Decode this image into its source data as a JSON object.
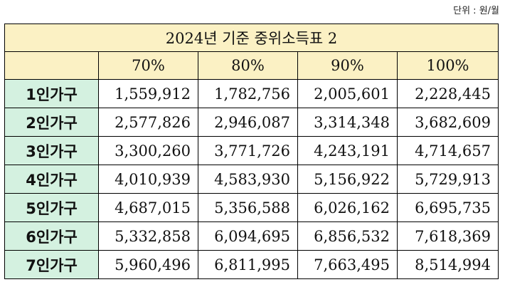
{
  "unit_label": "단위 : 원/월",
  "table": {
    "title": "2024년 기준 중위소득표 2",
    "columns": [
      "70%",
      "80%",
      "90%",
      "100%"
    ],
    "rows": [
      {
        "label": "1인가구",
        "values": [
          "1,559,912",
          "1,782,756",
          "2,005,601",
          "2,228,445"
        ]
      },
      {
        "label": "2인가구",
        "values": [
          "2,577,826",
          "2,946,087",
          "3,314,348",
          "3,682,609"
        ]
      },
      {
        "label": "3인가구",
        "values": [
          "3,300,260",
          "3,771,726",
          "4,243,191",
          "4,714,657"
        ]
      },
      {
        "label": "4인가구",
        "values": [
          "4,010,939",
          "4,583,930",
          "5,156,922",
          "5,729,913"
        ]
      },
      {
        "label": "5인가구",
        "values": [
          "4,687,015",
          "5,356,588",
          "6,026,162",
          "6,695,735"
        ]
      },
      {
        "label": "6인가구",
        "values": [
          "5,332,858",
          "6,094,695",
          "6,856,532",
          "7,618,369"
        ]
      },
      {
        "label": "7인가구",
        "values": [
          "5,960,496",
          "6,811,995",
          "7,663,495",
          "8,514,994"
        ]
      }
    ]
  }
}
